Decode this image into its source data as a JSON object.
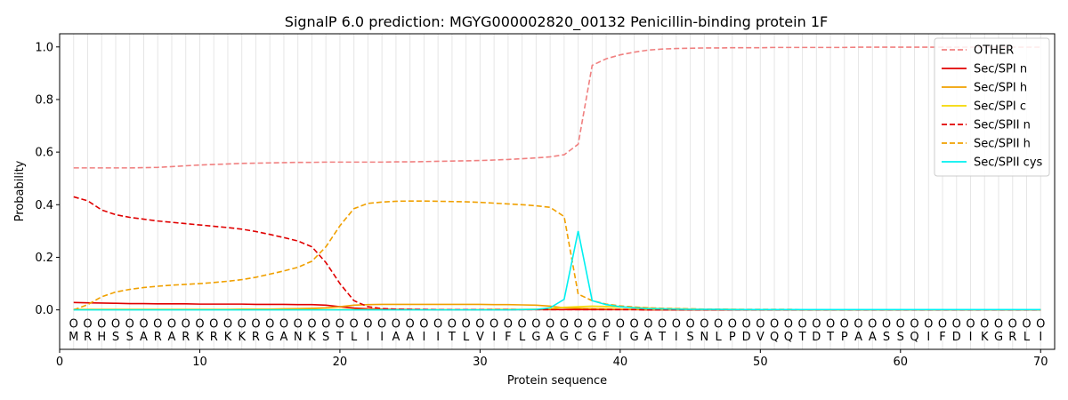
{
  "chart_data": {
    "type": "line",
    "title": "SignalP 6.0 prediction: MGYG000002820_00132 Penicillin-binding protein 1F",
    "xlabel": "Protein sequence",
    "ylabel": "Probability",
    "xlim": [
      0,
      71
    ],
    "ylim": [
      -0.15,
      1.05
    ],
    "xticks": [
      0,
      10,
      20,
      30,
      40,
      50,
      60,
      70
    ],
    "yticks": [
      0.0,
      0.2,
      0.4,
      0.6,
      0.8,
      1.0
    ],
    "ytick_labels": [
      "0.0",
      "0.2",
      "0.4",
      "0.6",
      "0.8",
      "1.0"
    ],
    "grid": "vertical-per-residue",
    "legend_position": "top-right",
    "sequence": [
      "M",
      "R",
      "H",
      "S",
      "S",
      "A",
      "R",
      "A",
      "R",
      "K",
      "R",
      "K",
      "K",
      "R",
      "G",
      "A",
      "N",
      "K",
      "S",
      "T",
      "L",
      "I",
      "I",
      "A",
      "A",
      "I",
      "I",
      "T",
      "L",
      "V",
      "I",
      "F",
      "L",
      "G",
      "A",
      "G",
      "C",
      "G",
      "F",
      "I",
      "G",
      "A",
      "T",
      "I",
      "S",
      "N",
      "L",
      "P",
      "D",
      "V",
      "Q",
      "Q",
      "T",
      "D",
      "T",
      "P",
      "A",
      "A",
      "S",
      "S",
      "Q",
      "I",
      "F",
      "D",
      "I",
      "K",
      "G",
      "R",
      "L",
      "I"
    ],
    "region_marker": "O",
    "series": [
      {
        "name": "OTHER",
        "color": "#f08080",
        "dash": "dashed",
        "values": [
          0.54,
          0.54,
          0.54,
          0.54,
          0.54,
          0.541,
          0.542,
          0.545,
          0.548,
          0.551,
          0.553,
          0.555,
          0.557,
          0.558,
          0.559,
          0.56,
          0.561,
          0.561,
          0.562,
          0.562,
          0.562,
          0.562,
          0.562,
          0.563,
          0.563,
          0.564,
          0.565,
          0.566,
          0.567,
          0.568,
          0.57,
          0.572,
          0.575,
          0.578,
          0.582,
          0.59,
          0.63,
          0.93,
          0.955,
          0.97,
          0.98,
          0.988,
          0.992,
          0.994,
          0.995,
          0.996,
          0.996,
          0.997,
          0.997,
          0.997,
          0.998,
          0.998,
          0.998,
          0.998,
          0.998,
          0.998,
          0.999,
          0.999,
          0.999,
          0.999,
          0.999,
          0.999,
          0.999,
          0.999,
          0.999,
          0.999,
          0.999,
          0.999,
          0.999,
          0.999
        ]
      },
      {
        "name": "Sec/SPI n",
        "color": "#e00000",
        "dash": "solid",
        "values": [
          0.028,
          0.027,
          0.026,
          0.025,
          0.024,
          0.024,
          0.023,
          0.023,
          0.023,
          0.022,
          0.022,
          0.022,
          0.022,
          0.021,
          0.021,
          0.021,
          0.02,
          0.02,
          0.018,
          0.012,
          0.007,
          0.004,
          0.003,
          0.002,
          0.002,
          0.001,
          0.001,
          0.001,
          0.001,
          0.001,
          0.001,
          0.001,
          0.001,
          0.001,
          0.001,
          0.001,
          0.001,
          0.001,
          0.001,
          0.001,
          0.001,
          0.0,
          0.0,
          0.0,
          0.0,
          0.0,
          0.0,
          0.0,
          0.0,
          0.0,
          0.0,
          0.0,
          0.0,
          0.0,
          0.0,
          0.0,
          0.0,
          0.0,
          0.0,
          0.0,
          0.0,
          0.0,
          0.0,
          0.0,
          0.0,
          0.0,
          0.0,
          0.0,
          0.0,
          0.0
        ]
      },
      {
        "name": "Sec/SPI h",
        "color": "#f0a000",
        "dash": "solid",
        "values": [
          0.002,
          0.002,
          0.002,
          0.002,
          0.002,
          0.002,
          0.002,
          0.002,
          0.002,
          0.002,
          0.002,
          0.002,
          0.003,
          0.003,
          0.003,
          0.004,
          0.005,
          0.006,
          0.008,
          0.012,
          0.018,
          0.02,
          0.021,
          0.021,
          0.021,
          0.021,
          0.021,
          0.021,
          0.021,
          0.021,
          0.02,
          0.02,
          0.019,
          0.018,
          0.014,
          0.008,
          0.006,
          0.005,
          0.004,
          0.003,
          0.002,
          0.002,
          0.001,
          0.001,
          0.001,
          0.001,
          0.001,
          0.001,
          0.001,
          0.001,
          0.001,
          0.001,
          0.001,
          0.001,
          0.001,
          0.001,
          0.001,
          0.001,
          0.001,
          0.001,
          0.001,
          0.001,
          0.001,
          0.001,
          0.001,
          0.001,
          0.001,
          0.001,
          0.001,
          0.001
        ]
      },
      {
        "name": "Sec/SPI c",
        "color": "#f5d800",
        "dash": "solid",
        "values": [
          0.001,
          0.001,
          0.001,
          0.001,
          0.001,
          0.001,
          0.001,
          0.001,
          0.001,
          0.001,
          0.001,
          0.001,
          0.001,
          0.001,
          0.001,
          0.001,
          0.001,
          0.001,
          0.001,
          0.001,
          0.001,
          0.001,
          0.001,
          0.001,
          0.001,
          0.001,
          0.001,
          0.001,
          0.001,
          0.001,
          0.002,
          0.002,
          0.002,
          0.003,
          0.004,
          0.01,
          0.012,
          0.014,
          0.013,
          0.011,
          0.009,
          0.007,
          0.005,
          0.004,
          0.003,
          0.002,
          0.002,
          0.002,
          0.001,
          0.001,
          0.001,
          0.001,
          0.001,
          0.001,
          0.001,
          0.001,
          0.001,
          0.001,
          0.001,
          0.001,
          0.001,
          0.001,
          0.001,
          0.001,
          0.001,
          0.001,
          0.001,
          0.001,
          0.001,
          0.001
        ]
      },
      {
        "name": "Sec/SPII n",
        "color": "#e00000",
        "dash": "dashed",
        "values": [
          0.43,
          0.415,
          0.38,
          0.362,
          0.352,
          0.345,
          0.338,
          0.333,
          0.328,
          0.323,
          0.318,
          0.313,
          0.307,
          0.298,
          0.287,
          0.275,
          0.262,
          0.24,
          0.18,
          0.1,
          0.035,
          0.012,
          0.005,
          0.003,
          0.002,
          0.002,
          0.001,
          0.001,
          0.001,
          0.001,
          0.001,
          0.001,
          0.001,
          0.001,
          0.001,
          0.001,
          0.001,
          0.001,
          0.001,
          0.001,
          0.001,
          0.0,
          0.0,
          0.0,
          0.0,
          0.0,
          0.0,
          0.0,
          0.0,
          0.0,
          0.0,
          0.0,
          0.0,
          0.0,
          0.0,
          0.0,
          0.0,
          0.0,
          0.0,
          0.0,
          0.0,
          0.0,
          0.0,
          0.0,
          0.0,
          0.0,
          0.0,
          0.0,
          0.0,
          0.0
        ]
      },
      {
        "name": "Sec/SPII h",
        "color": "#f0a000",
        "dash": "dashed",
        "values": [
          0.0,
          0.02,
          0.05,
          0.068,
          0.078,
          0.085,
          0.09,
          0.094,
          0.097,
          0.1,
          0.104,
          0.109,
          0.115,
          0.124,
          0.136,
          0.148,
          0.162,
          0.185,
          0.24,
          0.32,
          0.385,
          0.405,
          0.41,
          0.413,
          0.414,
          0.414,
          0.413,
          0.412,
          0.411,
          0.409,
          0.406,
          0.403,
          0.4,
          0.396,
          0.39,
          0.355,
          0.06,
          0.035,
          0.022,
          0.015,
          0.011,
          0.008,
          0.006,
          0.005,
          0.004,
          0.003,
          0.003,
          0.002,
          0.002,
          0.002,
          0.002,
          0.002,
          0.001,
          0.001,
          0.001,
          0.001,
          0.001,
          0.001,
          0.001,
          0.001,
          0.001,
          0.001,
          0.001,
          0.001,
          0.001,
          0.001,
          0.001,
          0.001,
          0.001,
          0.001
        ]
      },
      {
        "name": "Sec/SPII cys",
        "color": "#00f0f0",
        "dash": "solid",
        "values": [
          0.0,
          0.0,
          0.0,
          0.0,
          0.0,
          0.0,
          0.0,
          0.0,
          0.0,
          0.0,
          0.0,
          0.0,
          0.0,
          0.0,
          0.0,
          0.0,
          0.0,
          0.0,
          0.0,
          0.0,
          0.0,
          0.0,
          0.0,
          0.0,
          0.0,
          0.0,
          0.0,
          0.0,
          0.0,
          0.0,
          0.0,
          0.0,
          0.001,
          0.002,
          0.008,
          0.04,
          0.3,
          0.035,
          0.02,
          0.012,
          0.008,
          0.005,
          0.004,
          0.003,
          0.002,
          0.002,
          0.002,
          0.001,
          0.001,
          0.001,
          0.001,
          0.001,
          0.001,
          0.001,
          0.001,
          0.001,
          0.001,
          0.001,
          0.001,
          0.001,
          0.001,
          0.001,
          0.001,
          0.001,
          0.001,
          0.001,
          0.001,
          0.001,
          0.001,
          0.001
        ]
      }
    ]
  }
}
